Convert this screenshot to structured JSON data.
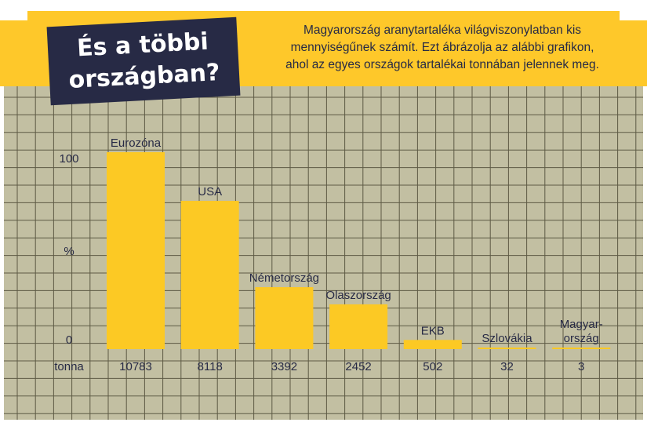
{
  "heading": {
    "line1": "És a többi",
    "line2": "országban?"
  },
  "intro": {
    "lines": [
      "Magyarország aranytartaléka világviszonylatban kis",
      "mennyiségűnek számít. Ezt ábrázolja az alábbi grafikon,",
      "ahol az egyes országok tartalékai tonnában jelennek meg."
    ]
  },
  "colors": {
    "callout": "#fec82a",
    "panel": "#c2bfa2",
    "grid": "#5d5a44",
    "bar": "#fcc924",
    "title_bg": "#272a45",
    "text": "#272a45"
  },
  "chart_data": {
    "type": "bar",
    "categories": [
      "Eurozóna",
      "USA",
      "Németország",
      "Olaszország",
      "EKB",
      "Szlovákia",
      "Magyar-ország"
    ],
    "category_lines": [
      [
        "Eurozóna"
      ],
      [
        "USA"
      ],
      [
        "Németország"
      ],
      [
        "Olaszország"
      ],
      [
        "EKB"
      ],
      [
        "Szlovákia"
      ],
      [
        "Magyar-",
        "ország"
      ]
    ],
    "values": [
      10783,
      8118,
      3392,
      2452,
      502,
      32,
      3
    ],
    "value_labels": [
      "10783",
      "8118",
      "3392",
      "2452",
      "502",
      "32",
      "3"
    ],
    "value_row_label": "tonna",
    "ylabel": "%",
    "yticks": [
      "0",
      "100"
    ],
    "ylim": [
      0,
      10783
    ],
    "grid": true,
    "legend": "none"
  }
}
